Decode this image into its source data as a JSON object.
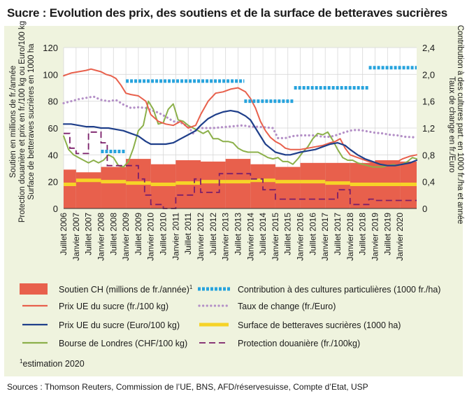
{
  "title": "Sucre : Evolution des prix, des soutiens et de la surface de betteraves sucrières",
  "source": "Sources : Thomson Reuters, Commission de l’UE, BNS, AFD/réservesuisse, Compte d’Etat, USP",
  "footnote": "estimation 2020",
  "footnote_mark": "1",
  "colors": {
    "panel_bg": "#eff3de",
    "plot_bg": "#ffffff",
    "soutien": "#e8604c",
    "prix_chf": "#e8604c",
    "prix_eur": "#1f3f8a",
    "londres": "#8cb04a",
    "contribution": "#27a3dd",
    "taux": "#b490c7",
    "surface": "#f6d327",
    "protection": "#7b1f6a"
  },
  "chart_data": {
    "type": "line",
    "title": "Sucre : Evolution des prix, des soutiens et de la surface de betteraves sucrières",
    "ylabel_left": [
      "Soutien en millions de fr./année",
      "Protection douanière et prix en fr./100 kg ou Euro/100 kg",
      "Surface de betteraves sucrières en 1000 ha"
    ],
    "ylabel_right": [
      "Taux de change en fr./Euro",
      "Contribution à des cultures part. en 1000 fr./ha et année"
    ],
    "ylim_left": [
      0,
      120
    ],
    "yticks_left": [
      "0",
      "20",
      "40",
      "60",
      "80",
      "100",
      "120"
    ],
    "ylim_right": [
      0,
      2.4
    ],
    "yticks_right": [
      "0",
      "0,4",
      "0,8",
      "1,2",
      "1,6",
      "2,0",
      "2,4"
    ],
    "xlim": [
      2006.5,
      2020.67
    ],
    "xtick_labels": [
      "Juillet 2006",
      "Janvier 2007",
      "Juillet 2007",
      "Janvier 2008",
      "Juillet 2008",
      "Janvier 2009",
      "Juillet 2009",
      "Janvier 2010",
      "Juillet 2010",
      "Janvier 2011",
      "Juillet 2011",
      "Janvier 2012",
      "Juillet 2012",
      "Janvier 2013",
      "Juillet 2013",
      "Janvier 2014",
      "Juillet 2014",
      "Janvier 2015",
      "Juillet 2015",
      "Janvier 2016",
      "Juillet 2016",
      "Janvier 2017",
      "Juillet 2017",
      "Janvier 2018",
      "Juillet 2018",
      "Janvier 2019",
      "Juillet 2019",
      "Janvier 2020"
    ],
    "xtick_positions": [
      2006.5,
      2007.0,
      2007.5,
      2008.0,
      2008.5,
      2009.0,
      2009.5,
      2010.0,
      2010.5,
      2011.0,
      2011.5,
      2012.0,
      2012.5,
      2013.0,
      2013.5,
      2014.0,
      2014.5,
      2015.0,
      2015.5,
      2016.0,
      2016.5,
      2017.0,
      2017.5,
      2018.0,
      2018.5,
      2019.0,
      2019.5,
      2020.0
    ],
    "series": [
      {
        "name": "Soutien CH (millions de fr./année)",
        "legend_label": "Soutien CH (millions de fr./année)",
        "legend_sup": "1",
        "kind": "bars",
        "axis": "left",
        "color": "#e8604c",
        "spans": [
          {
            "x0": 2006.5,
            "x1": 2007.0,
            "value": 29
          },
          {
            "x0": 2007.0,
            "x1": 2008.0,
            "value": 27
          },
          {
            "x0": 2008.0,
            "x1": 2009.0,
            "value": 31
          },
          {
            "x0": 2009.0,
            "x1": 2010.0,
            "value": 37
          },
          {
            "x0": 2010.0,
            "x1": 2011.0,
            "value": 33
          },
          {
            "x0": 2011.0,
            "x1": 2012.0,
            "value": 36
          },
          {
            "x0": 2012.0,
            "x1": 2013.0,
            "value": 35
          },
          {
            "x0": 2013.0,
            "x1": 2014.0,
            "value": 37
          },
          {
            "x0": 2014.0,
            "x1": 2015.0,
            "value": 33
          },
          {
            "x0": 2015.0,
            "x1": 2016.0,
            "value": 31
          },
          {
            "x0": 2016.0,
            "x1": 2017.0,
            "value": 34
          },
          {
            "x0": 2017.0,
            "x1": 2018.0,
            "value": 34
          },
          {
            "x0": 2018.0,
            "x1": 2019.0,
            "value": 34
          },
          {
            "x0": 2019.0,
            "x1": 2020.0,
            "value": 36
          },
          {
            "x0": 2020.0,
            "x1": 2020.67,
            "value": 35
          }
        ]
      },
      {
        "name": "Prix UE du sucre (fr./100 kg)",
        "legend_label": "Prix UE du sucre (fr./100 kg)",
        "kind": "line",
        "axis": "left",
        "color": "#e8604c",
        "x": [
          2006.5,
          2006.8,
          2007.1,
          2007.4,
          2007.6,
          2007.8,
          2008.0,
          2008.2,
          2008.4,
          2008.6,
          2008.8,
          2009.0,
          2009.2,
          2009.5,
          2009.8,
          2010.0,
          2010.3,
          2010.6,
          2010.9,
          2011.2,
          2011.5,
          2011.8,
          2012.0,
          2012.3,
          2012.6,
          2012.9,
          2013.2,
          2013.5,
          2013.8,
          2014.0,
          2014.2,
          2014.4,
          2014.6,
          2014.8,
          2015.0,
          2015.2,
          2015.4,
          2015.6,
          2015.8,
          2016.0,
          2016.3,
          2016.6,
          2016.9,
          2017.2,
          2017.4,
          2017.6,
          2017.8,
          2018.0,
          2018.3,
          2018.6,
          2018.9,
          2019.2,
          2019.5,
          2019.8,
          2020.1,
          2020.4,
          2020.67
        ],
        "y": [
          99,
          101,
          102,
          103,
          104,
          103,
          102,
          100,
          99,
          97,
          92,
          86,
          85,
          84,
          80,
          70,
          65,
          63,
          62,
          65,
          60,
          62,
          70,
          80,
          86,
          87,
          89,
          90,
          87,
          82,
          75,
          65,
          58,
          53,
          50,
          48,
          45,
          44,
          44,
          44,
          45,
          46,
          47,
          49,
          50,
          52,
          45,
          40,
          38,
          36,
          34,
          33,
          33,
          34,
          37,
          39,
          40
        ]
      },
      {
        "name": "Prix UE du sucre (Euro/100 kg)",
        "legend_label": "Prix UE du sucre (Euro/100 kg)",
        "kind": "line",
        "axis": "left",
        "color": "#1f3f8a",
        "x": [
          2006.5,
          2006.8,
          2007.1,
          2007.4,
          2007.7,
          2008.0,
          2008.3,
          2008.6,
          2008.9,
          2009.2,
          2009.5,
          2009.8,
          2010.0,
          2010.3,
          2010.6,
          2010.9,
          2011.2,
          2011.5,
          2011.8,
          2012.0,
          2012.3,
          2012.6,
          2012.9,
          2013.2,
          2013.5,
          2013.8,
          2014.0,
          2014.2,
          2014.4,
          2014.6,
          2014.8,
          2015.0,
          2015.2,
          2015.4,
          2015.6,
          2015.8,
          2016.0,
          2016.3,
          2016.6,
          2016.9,
          2017.2,
          2017.5,
          2017.8,
          2018.0,
          2018.3,
          2018.6,
          2018.9,
          2019.2,
          2019.5,
          2019.8,
          2020.1,
          2020.4,
          2020.67
        ],
        "y": [
          63,
          63,
          62,
          61,
          61,
          60,
          60,
          59,
          58,
          56,
          54,
          50,
          48,
          48,
          48,
          49,
          52,
          55,
          58,
          62,
          67,
          70,
          72,
          73,
          72,
          69,
          66,
          60,
          54,
          48,
          45,
          42,
          41,
          40,
          40,
          41,
          42,
          43,
          44,
          46,
          48,
          49,
          47,
          44,
          40,
          37,
          35,
          33,
          32,
          32,
          33,
          34,
          36
        ]
      },
      {
        "name": "Bourse de Londres (CHF/100 kg)",
        "legend_label": "Bourse de Londres (CHF/100 kg)",
        "kind": "line",
        "axis": "left",
        "color": "#8cb04a",
        "x": [
          2006.5,
          2006.7,
          2006.9,
          2007.1,
          2007.3,
          2007.5,
          2007.7,
          2007.9,
          2008.1,
          2008.3,
          2008.5,
          2008.7,
          2008.9,
          2009.1,
          2009.3,
          2009.5,
          2009.7,
          2009.9,
          2010.1,
          2010.3,
          2010.5,
          2010.7,
          2010.9,
          2011.1,
          2011.3,
          2011.5,
          2011.7,
          2011.9,
          2012.1,
          2012.3,
          2012.5,
          2012.7,
          2012.9,
          2013.1,
          2013.3,
          2013.5,
          2013.7,
          2013.9,
          2014.1,
          2014.3,
          2014.5,
          2014.7,
          2014.9,
          2015.1,
          2015.3,
          2015.5,
          2015.7,
          2015.9,
          2016.1,
          2016.3,
          2016.5,
          2016.7,
          2016.9,
          2017.1,
          2017.3,
          2017.5,
          2017.7,
          2017.9,
          2018.1,
          2018.3,
          2018.5,
          2018.7,
          2018.9,
          2019.1,
          2019.3,
          2019.5,
          2019.7,
          2019.9,
          2020.1,
          2020.3,
          2020.5,
          2020.67
        ],
        "y": [
          54,
          44,
          40,
          38,
          36,
          34,
          36,
          34,
          36,
          40,
          38,
          32,
          31,
          35,
          45,
          58,
          62,
          80,
          74,
          63,
          64,
          74,
          78,
          66,
          65,
          62,
          60,
          58,
          56,
          58,
          52,
          52,
          50,
          50,
          49,
          45,
          43,
          42,
          42,
          42,
          40,
          38,
          37,
          38,
          35,
          35,
          33,
          37,
          42,
          46,
          52,
          56,
          55,
          57,
          51,
          44,
          38,
          36,
          36,
          34,
          33,
          32,
          31,
          31,
          31,
          32,
          33,
          32,
          33,
          35,
          38,
          37
        ]
      },
      {
        "name": "Contribution à des cultures particulières (1000 fr./ha)",
        "legend_label": "Contribution à des cultures particulières (1000 fr./ha)",
        "kind": "steps",
        "axis": "right",
        "color": "#27a3dd",
        "spans": [
          {
            "x0": 2008.0,
            "x1": 2009.0,
            "value": 0.85
          },
          {
            "x0": 2009.0,
            "x1": 2013.75,
            "value": 1.9
          },
          {
            "x0": 2013.75,
            "x1": 2015.75,
            "value": 1.6
          },
          {
            "x0": 2015.75,
            "x1": 2018.75,
            "value": 1.8
          },
          {
            "x0": 2018.75,
            "x1": 2020.67,
            "value": 2.1
          }
        ]
      },
      {
        "name": "Taux de change (fr./Euro)",
        "legend_label": "Taux de change (fr./Euro)",
        "kind": "dotted",
        "axis": "right",
        "color": "#b490c7",
        "x": [
          2006.5,
          2006.8,
          2007.1,
          2007.4,
          2007.7,
          2008.0,
          2008.3,
          2008.6,
          2008.9,
          2009.2,
          2009.5,
          2009.8,
          2010.0,
          2010.3,
          2010.6,
          2010.9,
          2011.2,
          2011.5,
          2011.7,
          2011.9,
          2012.2,
          2012.5,
          2012.8,
          2013.1,
          2013.4,
          2013.7,
          2014.0,
          2014.3,
          2014.6,
          2014.9,
          2015.1,
          2015.4,
          2015.7,
          2016.0,
          2016.3,
          2016.6,
          2016.9,
          2017.2,
          2017.5,
          2017.8,
          2018.1,
          2018.4,
          2018.7,
          2019.0,
          2019.3,
          2019.6,
          2019.9,
          2020.2,
          2020.67
        ],
        "y": [
          1.57,
          1.6,
          1.63,
          1.65,
          1.67,
          1.62,
          1.6,
          1.62,
          1.55,
          1.5,
          1.51,
          1.5,
          1.47,
          1.43,
          1.37,
          1.3,
          1.28,
          1.22,
          1.12,
          1.2,
          1.2,
          1.2,
          1.21,
          1.22,
          1.23,
          1.24,
          1.22,
          1.22,
          1.21,
          1.2,
          1.05,
          1.05,
          1.08,
          1.09,
          1.09,
          1.09,
          1.07,
          1.07,
          1.1,
          1.14,
          1.17,
          1.17,
          1.15,
          1.13,
          1.12,
          1.1,
          1.09,
          1.07,
          1.06
        ]
      },
      {
        "name": "Surface de betteraves sucrières (1000 ha)",
        "legend_label": "Surface de betteraves sucrières (1000 ha)",
        "kind": "steps",
        "axis": "left",
        "color": "#f6d327",
        "spans": [
          {
            "x0": 2006.5,
            "x1": 2007.0,
            "value": 18
          },
          {
            "x0": 2007.0,
            "x1": 2008.0,
            "value": 21
          },
          {
            "x0": 2008.0,
            "x1": 2009.0,
            "value": 20
          },
          {
            "x0": 2009.0,
            "x1": 2010.0,
            "value": 19
          },
          {
            "x0": 2010.0,
            "x1": 2011.0,
            "value": 18
          },
          {
            "x0": 2011.0,
            "x1": 2012.0,
            "value": 19
          },
          {
            "x0": 2012.0,
            "x1": 2013.0,
            "value": 20
          },
          {
            "x0": 2013.0,
            "x1": 2014.0,
            "value": 20
          },
          {
            "x0": 2014.0,
            "x1": 2015.0,
            "value": 21
          },
          {
            "x0": 2015.0,
            "x1": 2016.0,
            "value": 20
          },
          {
            "x0": 2016.0,
            "x1": 2017.0,
            "value": 20
          },
          {
            "x0": 2017.0,
            "x1": 2018.0,
            "value": 19
          },
          {
            "x0": 2018.0,
            "x1": 2019.0,
            "value": 18
          },
          {
            "x0": 2019.0,
            "x1": 2020.0,
            "value": 18
          },
          {
            "x0": 2020.0,
            "x1": 2020.67,
            "value": 18
          }
        ]
      },
      {
        "name": "Protection douanière (fr./100kg)",
        "legend_label": "Protection douanière (fr./100kg)",
        "kind": "dashed",
        "axis": "left",
        "color": "#7b1f6a",
        "x": [
          2006.5,
          2006.75,
          2006.75,
          2007.0,
          2007.0,
          2007.5,
          2007.5,
          2008.0,
          2008.0,
          2008.25,
          2008.25,
          2009.5,
          2009.5,
          2009.75,
          2009.75,
          2010.0,
          2010.0,
          2010.5,
          2010.5,
          2011.0,
          2011.0,
          2011.75,
          2011.75,
          2012.0,
          2012.0,
          2012.75,
          2012.75,
          2014.0,
          2014.0,
          2014.5,
          2014.5,
          2015.0,
          2015.0,
          2017.5,
          2017.5,
          2018.0,
          2018.0,
          2018.75,
          2018.75,
          2019.0,
          2019.0,
          2020.67
        ],
        "y": [
          56,
          56,
          45,
          45,
          41,
          41,
          57,
          57,
          49,
          49,
          32,
          32,
          22,
          22,
          10,
          10,
          3,
          3,
          0,
          0,
          10,
          10,
          22,
          22,
          12,
          12,
          26,
          26,
          22,
          22,
          14,
          14,
          7,
          7,
          14,
          14,
          3,
          3,
          7,
          7,
          6,
          6
        ]
      }
    ]
  }
}
